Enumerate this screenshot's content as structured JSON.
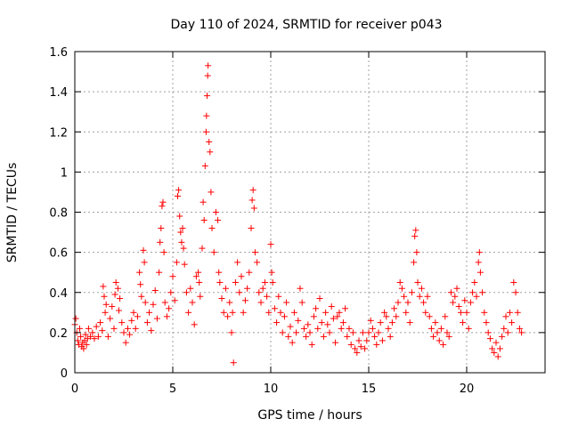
{
  "chart_data": {
    "type": "scatter",
    "title": "Day 110 of 2024, SRMTID for receiver p043",
    "xlabel": "GPS time / hours",
    "ylabel": "SRMTID / TECUs",
    "xlim": [
      0,
      24
    ],
    "ylim": [
      0,
      1.6
    ],
    "xticks": [
      0,
      5,
      10,
      15,
      20
    ],
    "xtick_labels": [
      "0",
      "5",
      "10",
      "15",
      "20"
    ],
    "yticks": [
      0,
      0.2,
      0.4,
      0.6,
      0.8,
      1.0,
      1.2,
      1.4,
      1.6
    ],
    "ytick_labels": [
      "0",
      "0.2",
      "0.4",
      "0.6",
      "0.8",
      "1",
      "1.2",
      "1.4",
      "1.6"
    ],
    "grid": true,
    "marker": "plus",
    "color": "#ff0000",
    "series": [
      {
        "name": "SRMTID",
        "points": [
          [
            0.0,
            0.24
          ],
          [
            0.05,
            0.27
          ],
          [
            0.1,
            0.2
          ],
          [
            0.15,
            0.16
          ],
          [
            0.2,
            0.14
          ],
          [
            0.25,
            0.22
          ],
          [
            0.3,
            0.18
          ],
          [
            0.35,
            0.13
          ],
          [
            0.4,
            0.15
          ],
          [
            0.45,
            0.12
          ],
          [
            0.5,
            0.16
          ],
          [
            0.55,
            0.19
          ],
          [
            0.6,
            0.14
          ],
          [
            0.65,
            0.17
          ],
          [
            0.7,
            0.22
          ],
          [
            0.8,
            0.18
          ],
          [
            0.9,
            0.2
          ],
          [
            1.0,
            0.17
          ],
          [
            1.1,
            0.23
          ],
          [
            1.2,
            0.18
          ],
          [
            1.3,
            0.25
          ],
          [
            1.4,
            0.21
          ],
          [
            1.45,
            0.43
          ],
          [
            1.5,
            0.38
          ],
          [
            1.55,
            0.3
          ],
          [
            1.6,
            0.34
          ],
          [
            1.7,
            0.18
          ],
          [
            1.8,
            0.27
          ],
          [
            1.9,
            0.33
          ],
          [
            2.0,
            0.22
          ],
          [
            2.05,
            0.39
          ],
          [
            2.1,
            0.45
          ],
          [
            2.2,
            0.42
          ],
          [
            2.25,
            0.31
          ],
          [
            2.3,
            0.37
          ],
          [
            2.4,
            0.25
          ],
          [
            2.5,
            0.2
          ],
          [
            2.6,
            0.15
          ],
          [
            2.7,
            0.22
          ],
          [
            2.8,
            0.19
          ],
          [
            2.9,
            0.26
          ],
          [
            3.0,
            0.3
          ],
          [
            3.1,
            0.22
          ],
          [
            3.2,
            0.28
          ],
          [
            3.3,
            0.5
          ],
          [
            3.35,
            0.44
          ],
          [
            3.4,
            0.38
          ],
          [
            3.5,
            0.61
          ],
          [
            3.55,
            0.55
          ],
          [
            3.6,
            0.35
          ],
          [
            3.7,
            0.25
          ],
          [
            3.8,
            0.3
          ],
          [
            3.9,
            0.21
          ],
          [
            4.0,
            0.34
          ],
          [
            4.1,
            0.41
          ],
          [
            4.2,
            0.27
          ],
          [
            4.3,
            0.5
          ],
          [
            4.35,
            0.65
          ],
          [
            4.4,
            0.72
          ],
          [
            4.45,
            0.83
          ],
          [
            4.5,
            0.85
          ],
          [
            4.55,
            0.6
          ],
          [
            4.6,
            0.35
          ],
          [
            4.7,
            0.28
          ],
          [
            4.8,
            0.32
          ],
          [
            4.9,
            0.4
          ],
          [
            5.0,
            0.48
          ],
          [
            5.1,
            0.36
          ],
          [
            5.2,
            0.55
          ],
          [
            5.25,
            0.88
          ],
          [
            5.3,
            0.91
          ],
          [
            5.35,
            0.78
          ],
          [
            5.4,
            0.7
          ],
          [
            5.45,
            0.65
          ],
          [
            5.5,
            0.72
          ],
          [
            5.55,
            0.62
          ],
          [
            5.6,
            0.54
          ],
          [
            5.7,
            0.4
          ],
          [
            5.8,
            0.3
          ],
          [
            5.9,
            0.42
          ],
          [
            6.0,
            0.35
          ],
          [
            6.1,
            0.24
          ],
          [
            6.2,
            0.48
          ],
          [
            6.3,
            0.5
          ],
          [
            6.35,
            0.45
          ],
          [
            6.4,
            0.38
          ],
          [
            6.5,
            0.62
          ],
          [
            6.55,
            0.85
          ],
          [
            6.6,
            0.76
          ],
          [
            6.65,
            1.03
          ],
          [
            6.7,
            1.2
          ],
          [
            6.72,
            1.28
          ],
          [
            6.75,
            1.38
          ],
          [
            6.78,
            1.48
          ],
          [
            6.8,
            1.53
          ],
          [
            6.85,
            1.15
          ],
          [
            6.9,
            1.1
          ],
          [
            6.95,
            0.9
          ],
          [
            7.0,
            0.72
          ],
          [
            7.1,
            0.6
          ],
          [
            7.2,
            0.8
          ],
          [
            7.3,
            0.76
          ],
          [
            7.35,
            0.5
          ],
          [
            7.4,
            0.45
          ],
          [
            7.5,
            0.37
          ],
          [
            7.6,
            0.3
          ],
          [
            7.7,
            0.42
          ],
          [
            7.8,
            0.28
          ],
          [
            7.9,
            0.35
          ],
          [
            8.0,
            0.2
          ],
          [
            8.05,
            0.3
          ],
          [
            8.1,
            0.05
          ],
          [
            8.2,
            0.45
          ],
          [
            8.3,
            0.55
          ],
          [
            8.4,
            0.4
          ],
          [
            8.5,
            0.48
          ],
          [
            8.6,
            0.3
          ],
          [
            8.7,
            0.36
          ],
          [
            8.8,
            0.42
          ],
          [
            8.9,
            0.5
          ],
          [
            9.0,
            0.72
          ],
          [
            9.05,
            0.86
          ],
          [
            9.1,
            0.91
          ],
          [
            9.15,
            0.82
          ],
          [
            9.2,
            0.6
          ],
          [
            9.3,
            0.55
          ],
          [
            9.4,
            0.4
          ],
          [
            9.5,
            0.35
          ],
          [
            9.6,
            0.42
          ],
          [
            9.7,
            0.45
          ],
          [
            9.8,
            0.38
          ],
          [
            9.9,
            0.3
          ],
          [
            10.0,
            0.64
          ],
          [
            10.05,
            0.5
          ],
          [
            10.1,
            0.45
          ],
          [
            10.2,
            0.32
          ],
          [
            10.3,
            0.25
          ],
          [
            10.4,
            0.38
          ],
          [
            10.5,
            0.3
          ],
          [
            10.6,
            0.2
          ],
          [
            10.7,
            0.28
          ],
          [
            10.8,
            0.35
          ],
          [
            10.9,
            0.18
          ],
          [
            11.0,
            0.23
          ],
          [
            11.1,
            0.15
          ],
          [
            11.2,
            0.3
          ],
          [
            11.3,
            0.2
          ],
          [
            11.4,
            0.26
          ],
          [
            11.5,
            0.42
          ],
          [
            11.6,
            0.35
          ],
          [
            11.7,
            0.22
          ],
          [
            11.8,
            0.18
          ],
          [
            11.9,
            0.24
          ],
          [
            12.0,
            0.2
          ],
          [
            12.1,
            0.14
          ],
          [
            12.2,
            0.28
          ],
          [
            12.3,
            0.32
          ],
          [
            12.4,
            0.22
          ],
          [
            12.5,
            0.37
          ],
          [
            12.6,
            0.25
          ],
          [
            12.7,
            0.18
          ],
          [
            12.8,
            0.3
          ],
          [
            12.9,
            0.24
          ],
          [
            13.0,
            0.2
          ],
          [
            13.1,
            0.33
          ],
          [
            13.2,
            0.27
          ],
          [
            13.3,
            0.15
          ],
          [
            13.4,
            0.28
          ],
          [
            13.5,
            0.3
          ],
          [
            13.6,
            0.22
          ],
          [
            13.7,
            0.25
          ],
          [
            13.8,
            0.32
          ],
          [
            13.9,
            0.18
          ],
          [
            14.0,
            0.22
          ],
          [
            14.1,
            0.14
          ],
          [
            14.2,
            0.2
          ],
          [
            14.3,
            0.12
          ],
          [
            14.4,
            0.1
          ],
          [
            14.5,
            0.16
          ],
          [
            14.6,
            0.13
          ],
          [
            14.7,
            0.2
          ],
          [
            14.8,
            0.12
          ],
          [
            14.9,
            0.16
          ],
          [
            15.0,
            0.2
          ],
          [
            15.1,
            0.26
          ],
          [
            15.2,
            0.22
          ],
          [
            15.3,
            0.18
          ],
          [
            15.4,
            0.14
          ],
          [
            15.5,
            0.2
          ],
          [
            15.6,
            0.25
          ],
          [
            15.7,
            0.16
          ],
          [
            15.8,
            0.3
          ],
          [
            15.9,
            0.28
          ],
          [
            16.0,
            0.22
          ],
          [
            16.1,
            0.18
          ],
          [
            16.2,
            0.25
          ],
          [
            16.3,
            0.32
          ],
          [
            16.4,
            0.28
          ],
          [
            16.5,
            0.35
          ],
          [
            16.6,
            0.45
          ],
          [
            16.7,
            0.42
          ],
          [
            16.8,
            0.38
          ],
          [
            16.9,
            0.3
          ],
          [
            17.0,
            0.35
          ],
          [
            17.1,
            0.25
          ],
          [
            17.2,
            0.4
          ],
          [
            17.3,
            0.55
          ],
          [
            17.35,
            0.68
          ],
          [
            17.4,
            0.71
          ],
          [
            17.45,
            0.6
          ],
          [
            17.5,
            0.45
          ],
          [
            17.6,
            0.38
          ],
          [
            17.7,
            0.42
          ],
          [
            17.8,
            0.35
          ],
          [
            17.9,
            0.3
          ],
          [
            18.0,
            0.38
          ],
          [
            18.1,
            0.28
          ],
          [
            18.2,
            0.22
          ],
          [
            18.3,
            0.18
          ],
          [
            18.4,
            0.25
          ],
          [
            18.5,
            0.2
          ],
          [
            18.6,
            0.16
          ],
          [
            18.7,
            0.22
          ],
          [
            18.8,
            0.14
          ],
          [
            18.9,
            0.28
          ],
          [
            19.0,
            0.2
          ],
          [
            19.1,
            0.18
          ],
          [
            19.2,
            0.4
          ],
          [
            19.3,
            0.35
          ],
          [
            19.4,
            0.38
          ],
          [
            19.5,
            0.42
          ],
          [
            19.6,
            0.33
          ],
          [
            19.7,
            0.3
          ],
          [
            19.8,
            0.25
          ],
          [
            19.9,
            0.36
          ],
          [
            20.0,
            0.3
          ],
          [
            20.1,
            0.22
          ],
          [
            20.2,
            0.35
          ],
          [
            20.3,
            0.4
          ],
          [
            20.4,
            0.45
          ],
          [
            20.5,
            0.38
          ],
          [
            20.6,
            0.55
          ],
          [
            20.65,
            0.6
          ],
          [
            20.7,
            0.5
          ],
          [
            20.8,
            0.4
          ],
          [
            20.9,
            0.3
          ],
          [
            21.0,
            0.25
          ],
          [
            21.1,
            0.2
          ],
          [
            21.2,
            0.17
          ],
          [
            21.3,
            0.12
          ],
          [
            21.4,
            0.1
          ],
          [
            21.5,
            0.15
          ],
          [
            21.6,
            0.08
          ],
          [
            21.7,
            0.12
          ],
          [
            21.8,
            0.18
          ],
          [
            21.9,
            0.22
          ],
          [
            22.0,
            0.28
          ],
          [
            22.1,
            0.2
          ],
          [
            22.2,
            0.3
          ],
          [
            22.3,
            0.25
          ],
          [
            22.4,
            0.45
          ],
          [
            22.5,
            0.4
          ],
          [
            22.6,
            0.3
          ],
          [
            22.7,
            0.22
          ],
          [
            22.8,
            0.2
          ]
        ]
      }
    ]
  }
}
